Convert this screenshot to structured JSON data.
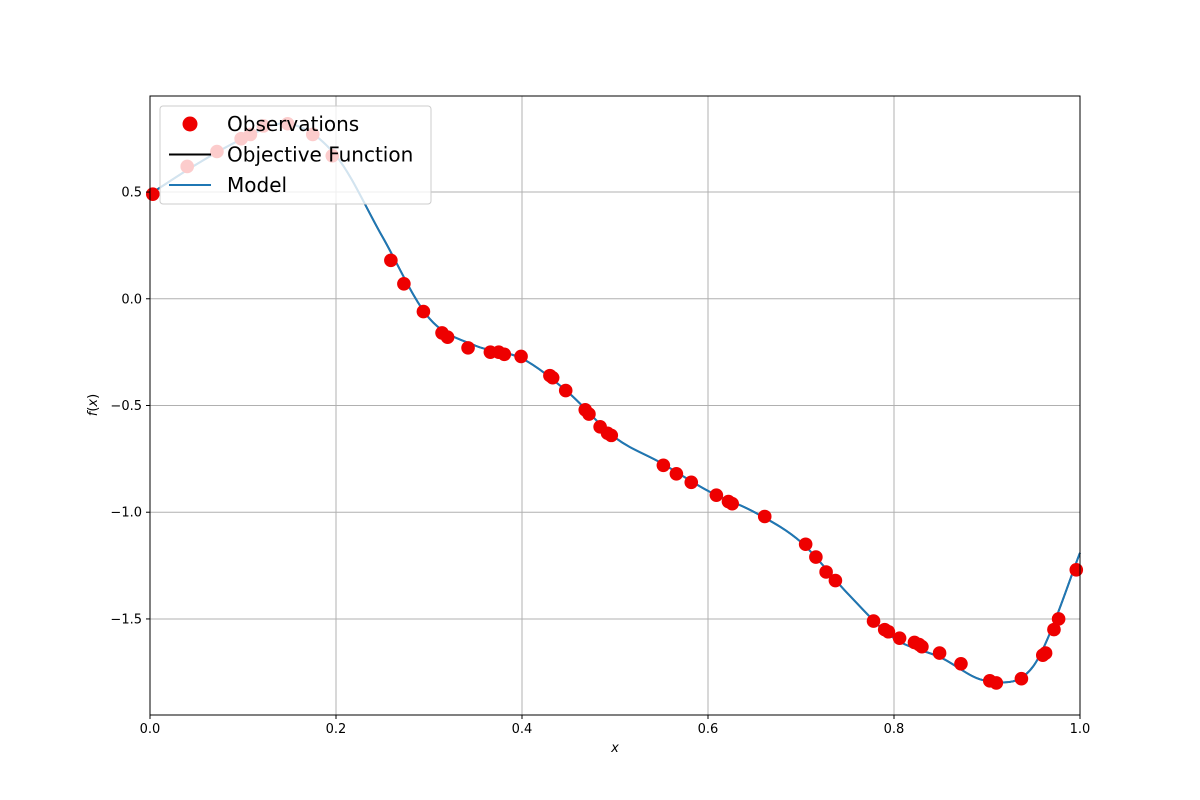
{
  "chart_data": {
    "type": "scatter",
    "title": "",
    "xlabel": "x",
    "ylabel": "f(x)",
    "xlim": [
      0.0,
      1.0
    ],
    "ylim": [
      -1.95,
      0.95
    ],
    "xticks": [
      0.0,
      0.2,
      0.4,
      0.6,
      0.8,
      1.0
    ],
    "xtick_labels": [
      "0.0",
      "0.2",
      "0.4",
      "0.6",
      "0.8",
      "1.0"
    ],
    "yticks": [
      0.5,
      0.0,
      -0.5,
      -1.0,
      -1.5
    ],
    "ytick_labels": [
      "0.5",
      "0.0",
      "−0.5",
      "−1.0",
      "−1.5"
    ],
    "grid": true,
    "legend_position": "top-left",
    "legend": [
      {
        "name": "Observations",
        "marker": "circle",
        "color": "#ee0000"
      },
      {
        "name": "Objective Function",
        "marker": "line",
        "color": "#000000"
      },
      {
        "name": "Model",
        "marker": "line",
        "color": "#1f77b4"
      }
    ],
    "series": [
      {
        "name": "Objective Function",
        "kind": "line",
        "color": "#000000",
        "x": [
          0.0,
          0.05,
          0.1,
          0.15,
          0.2,
          0.25,
          0.3,
          0.35,
          0.4,
          0.45,
          0.5,
          0.55,
          0.6,
          0.65,
          0.7,
          0.75,
          0.8,
          0.85,
          0.9,
          0.95,
          1.0
        ],
        "y": [
          0.49,
          0.63,
          0.75,
          0.82,
          0.67,
          0.29,
          -0.09,
          -0.22,
          -0.28,
          -0.44,
          -0.65,
          -0.77,
          -0.9,
          -1.0,
          -1.14,
          -1.38,
          -1.59,
          -1.68,
          -1.79,
          -1.72,
          -1.19
        ]
      },
      {
        "name": "Model",
        "kind": "line",
        "color": "#1f77b4",
        "x": [
          0.0,
          0.05,
          0.1,
          0.15,
          0.2,
          0.25,
          0.3,
          0.35,
          0.4,
          0.45,
          0.5,
          0.55,
          0.6,
          0.65,
          0.7,
          0.75,
          0.8,
          0.85,
          0.9,
          0.95,
          1.0
        ],
        "y": [
          0.49,
          0.63,
          0.75,
          0.82,
          0.67,
          0.29,
          -0.09,
          -0.22,
          -0.28,
          -0.44,
          -0.65,
          -0.77,
          -0.9,
          -1.0,
          -1.14,
          -1.38,
          -1.59,
          -1.68,
          -1.79,
          -1.72,
          -1.19
        ]
      },
      {
        "name": "Observations",
        "kind": "scatter",
        "color": "#ee0000",
        "x": [
          0.003,
          0.04,
          0.072,
          0.098,
          0.108,
          0.122,
          0.148,
          0.175,
          0.196,
          0.259,
          0.273,
          0.294,
          0.314,
          0.32,
          0.342,
          0.366,
          0.375,
          0.381,
          0.399,
          0.43,
          0.433,
          0.447,
          0.468,
          0.472,
          0.484,
          0.492,
          0.496,
          0.552,
          0.566,
          0.582,
          0.609,
          0.622,
          0.626,
          0.661,
          0.705,
          0.716,
          0.727,
          0.737,
          0.778,
          0.79,
          0.794,
          0.806,
          0.822,
          0.827,
          0.83,
          0.849,
          0.872,
          0.903,
          0.91,
          0.937,
          0.96,
          0.963,
          0.972,
          0.977,
          0.996
        ],
        "y": [
          0.49,
          0.62,
          0.69,
          0.75,
          0.77,
          0.81,
          0.82,
          0.77,
          0.67,
          0.18,
          0.07,
          -0.06,
          -0.16,
          -0.18,
          -0.23,
          -0.25,
          -0.25,
          -0.26,
          -0.27,
          -0.36,
          -0.37,
          -0.43,
          -0.52,
          -0.54,
          -0.6,
          -0.63,
          -0.64,
          -0.78,
          -0.82,
          -0.86,
          -0.92,
          -0.95,
          -0.96,
          -1.02,
          -1.15,
          -1.21,
          -1.28,
          -1.32,
          -1.51,
          -1.55,
          -1.56,
          -1.59,
          -1.61,
          -1.62,
          -1.63,
          -1.66,
          -1.71,
          -1.79,
          -1.8,
          -1.78,
          -1.67,
          -1.66,
          -1.55,
          -1.5,
          -1.27
        ]
      }
    ]
  }
}
